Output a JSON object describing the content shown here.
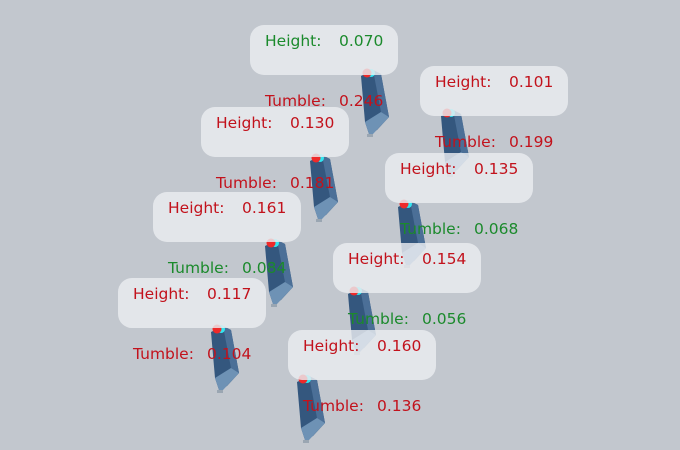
{
  "colors": {
    "ok": "#1b8a2c",
    "bad": "#c2121c",
    "background": "#c2c7ce",
    "object": "#3d5f85"
  },
  "height_label": "Height:",
  "tumble_label": "Tumble:",
  "items": [
    {
      "height": "0.070",
      "height_status": "ok",
      "tumble": "0.246",
      "tumble_status": "bad"
    },
    {
      "height": "0.101",
      "height_status": "bad",
      "tumble": "0.199",
      "tumble_status": "bad"
    },
    {
      "height": "0.130",
      "height_status": "bad",
      "tumble": "0.181",
      "tumble_status": "bad"
    },
    {
      "height": "0.135",
      "height_status": "bad",
      "tumble": "0.068",
      "tumble_status": "ok"
    },
    {
      "height": "0.161",
      "height_status": "bad",
      "tumble": "0.084",
      "tumble_status": "ok"
    },
    {
      "height": "0.154",
      "height_status": "bad",
      "tumble": "0.056",
      "tumble_status": "ok"
    },
    {
      "height": "0.117",
      "height_status": "bad",
      "tumble": "0.104",
      "tumble_status": "bad"
    },
    {
      "height": "0.160",
      "height_status": "bad",
      "tumble": "0.136",
      "tumble_status": "bad"
    }
  ]
}
